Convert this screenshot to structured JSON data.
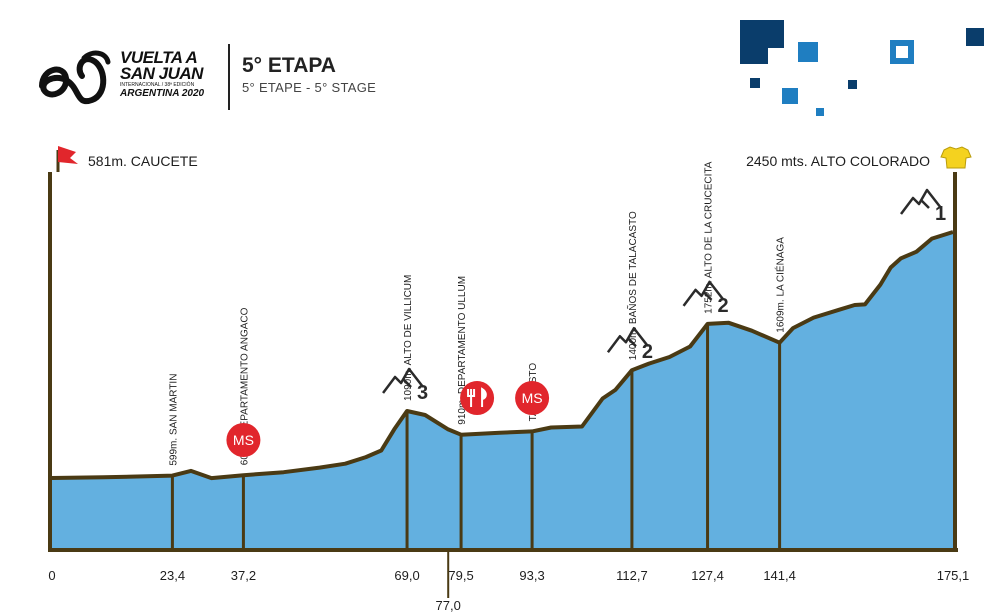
{
  "header": {
    "logo_line1": "VUELTA A",
    "logo_line2": "SAN JUAN",
    "logo_line3": "ARGENTINA 2020",
    "logo_tiny": "INTERNACIONAL / 38ª EDICIÓN",
    "stage_title": "5° ETAPA",
    "stage_subtitle": "5° ETAPE - 5° STAGE"
  },
  "brand_colors": {
    "profile_fill": "#63b0e0",
    "profile_stroke": "#4a3a14",
    "dark_blue": "#0a3d6b",
    "mid_blue": "#1f7ec1",
    "marker_red": "#e1262c",
    "jersey_yellow": "#f4d21f"
  },
  "chart_data": {
    "type": "area",
    "title": "",
    "start_label": "581m. CAUCETE",
    "finish_label": "2450 mts. ALTO COLORADO",
    "x_unit": "km",
    "xlim": [
      0,
      175.1
    ],
    "ylim": [
      0,
      2600
    ],
    "profile": [
      [
        0,
        581
      ],
      [
        10,
        586
      ],
      [
        23.4,
        599
      ],
      [
        27,
        635
      ],
      [
        31,
        580
      ],
      [
        37.2,
        602
      ],
      [
        45,
        625
      ],
      [
        52,
        660
      ],
      [
        57,
        690
      ],
      [
        61,
        740
      ],
      [
        64,
        790
      ],
      [
        66.5,
        950
      ],
      [
        69.0,
        1090
      ],
      [
        72.5,
        1060
      ],
      [
        77.0,
        950
      ],
      [
        79.5,
        910
      ],
      [
        87,
        925
      ],
      [
        93.3,
        935
      ],
      [
        97,
        965
      ],
      [
        103,
        972
      ],
      [
        107,
        1185
      ],
      [
        109.5,
        1250
      ],
      [
        112.7,
        1400
      ],
      [
        116,
        1450
      ],
      [
        120,
        1500
      ],
      [
        124,
        1580
      ],
      [
        127.4,
        1752
      ],
      [
        131.5,
        1760
      ],
      [
        136,
        1700
      ],
      [
        141.4,
        1609
      ],
      [
        144,
        1720
      ],
      [
        148,
        1800
      ],
      [
        153,
        1860
      ],
      [
        156,
        1895
      ],
      [
        158,
        1900
      ],
      [
        161,
        2050
      ],
      [
        163,
        2180
      ],
      [
        165,
        2250
      ],
      [
        168,
        2300
      ],
      [
        171,
        2400
      ],
      [
        175.1,
        2450
      ]
    ],
    "x_ticks": [
      0,
      23.4,
      37.2,
      69.0,
      77.0,
      79.5,
      93.3,
      112.7,
      127.4,
      141.4,
      175.1
    ],
    "x_tick_labels": [
      "0",
      "23,4",
      "37,2",
      "69,0",
      "77,0",
      "79,5",
      "93,3",
      "112,7",
      "127,4",
      "141,4",
      "175,1"
    ],
    "waypoints": [
      {
        "km": 23.4,
        "label": "599m. SAN MARTIN"
      },
      {
        "km": 37.2,
        "label": "602m. DEPARTAMENTO ANGACO"
      },
      {
        "km": 69.0,
        "label": "1090m. ALTO DE VILLICUM"
      },
      {
        "km": 79.5,
        "label": "910m. DEPARTAMENTO ULLUM"
      },
      {
        "km": 93.3,
        "label": "TALACASTO"
      },
      {
        "km": 112.7,
        "label": "1400m. BAÑOS DE TALACASTO"
      },
      {
        "km": 127.4,
        "label": "1752m. ALTO DE LA CRUCECITA"
      },
      {
        "km": 141.4,
        "label": "1609m. LA CIÉNAGA"
      }
    ],
    "climbs": [
      {
        "km": 69.0,
        "category": "3"
      },
      {
        "km": 112.7,
        "category": "2"
      },
      {
        "km": 127.4,
        "category": "2"
      },
      {
        "km": 175.1,
        "category": "1"
      }
    ],
    "markers": [
      {
        "km": 37.2,
        "type": "sprint",
        "label": "MS"
      },
      {
        "km": 79.5,
        "type": "feed",
        "label": "feed-zone"
      },
      {
        "km": 93.3,
        "type": "sprint",
        "label": "MS"
      }
    ]
  }
}
